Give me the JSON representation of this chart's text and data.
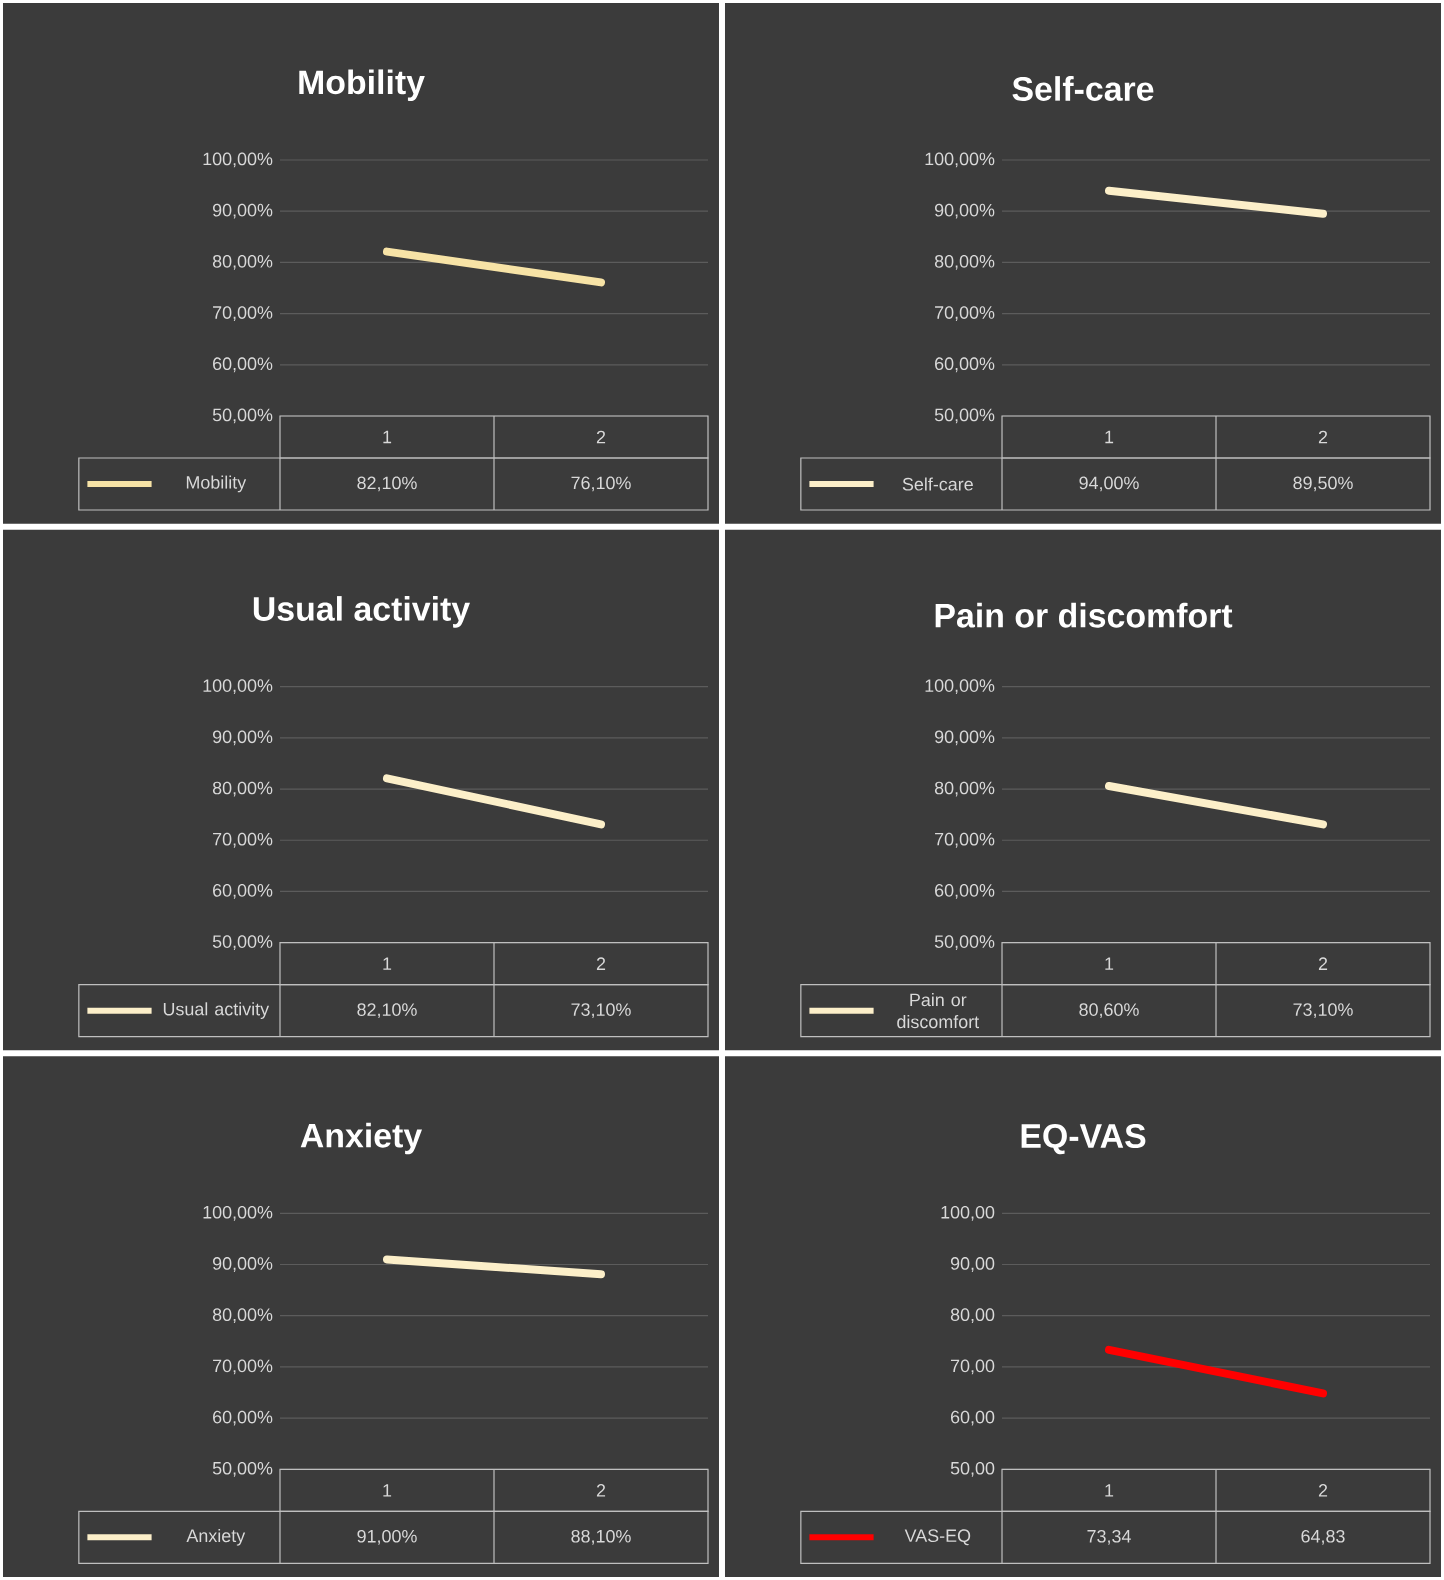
{
  "chart_data": [
    {
      "type": "line",
      "title": "Mobility",
      "categories": [
        "1",
        "2"
      ],
      "grid": "y",
      "legend": "bottom",
      "ylim": [
        50,
        100
      ],
      "yticks": [
        {
          "value": 50,
          "label": "50,00%"
        },
        {
          "value": 60,
          "label": "60,00%"
        },
        {
          "value": 70,
          "label": "70,00%"
        },
        {
          "value": 80,
          "label": "80,00%"
        },
        {
          "value": 90,
          "label": "90,00%"
        },
        {
          "value": 100,
          "label": "100,00%"
        }
      ],
      "series": [
        {
          "name": "Mobility",
          "color": "#f7e3a6",
          "values": [
            82.1,
            76.1
          ],
          "value_labels": [
            "82,10%",
            "76,10%"
          ]
        }
      ]
    },
    {
      "type": "line",
      "title": "Self-care",
      "categories": [
        "1",
        "2"
      ],
      "grid": "y",
      "legend": "bottom",
      "ylim": [
        50,
        100
      ],
      "yticks": [
        {
          "value": 50,
          "label": "50,00%"
        },
        {
          "value": 60,
          "label": "60,00%"
        },
        {
          "value": 70,
          "label": "70,00%"
        },
        {
          "value": 80,
          "label": "80,00%"
        },
        {
          "value": 90,
          "label": "90,00%"
        },
        {
          "value": 100,
          "label": "100,00%"
        }
      ],
      "series": [
        {
          "name": "Self-care",
          "color": "#fcefc9",
          "values": [
            94.0,
            89.5
          ],
          "value_labels": [
            "94,00%",
            "89,50%"
          ]
        }
      ]
    },
    {
      "type": "line",
      "title": "Usual activity",
      "categories": [
        "1",
        "2"
      ],
      "grid": "y",
      "legend": "bottom",
      "ylim": [
        50,
        100
      ],
      "yticks": [
        {
          "value": 50,
          "label": "50,00%"
        },
        {
          "value": 60,
          "label": "60,00%"
        },
        {
          "value": 70,
          "label": "70,00%"
        },
        {
          "value": 80,
          "label": "80,00%"
        },
        {
          "value": 90,
          "label": "90,00%"
        },
        {
          "value": 100,
          "label": "100,00%"
        }
      ],
      "series": [
        {
          "name": "Usual activity",
          "color": "#fcefc9",
          "values": [
            82.1,
            73.1
          ],
          "value_labels": [
            "82,10%",
            "73,10%"
          ]
        }
      ]
    },
    {
      "type": "line",
      "title": "Pain or discomfort",
      "categories": [
        "1",
        "2"
      ],
      "grid": "y",
      "legend": "bottom",
      "ylim": [
        50,
        100
      ],
      "yticks": [
        {
          "value": 50,
          "label": "50,00%"
        },
        {
          "value": 60,
          "label": "60,00%"
        },
        {
          "value": 70,
          "label": "70,00%"
        },
        {
          "value": 80,
          "label": "80,00%"
        },
        {
          "value": 90,
          "label": "90,00%"
        },
        {
          "value": 100,
          "label": "100,00%"
        }
      ],
      "series": [
        {
          "name": "Pain or discomfort",
          "color": "#fcefc9",
          "values": [
            80.6,
            73.1
          ],
          "value_labels": [
            "80,60%",
            "73,10%"
          ]
        }
      ]
    },
    {
      "type": "line",
      "title": "Anxiety",
      "categories": [
        "1",
        "2"
      ],
      "grid": "y",
      "legend": "bottom",
      "ylim": [
        50,
        100
      ],
      "yticks": [
        {
          "value": 50,
          "label": "50,00%"
        },
        {
          "value": 60,
          "label": "60,00%"
        },
        {
          "value": 70,
          "label": "70,00%"
        },
        {
          "value": 80,
          "label": "80,00%"
        },
        {
          "value": 90,
          "label": "90,00%"
        },
        {
          "value": 100,
          "label": "100,00%"
        }
      ],
      "series": [
        {
          "name": "Anxiety",
          "color": "#fcefc9",
          "values": [
            91.0,
            88.1
          ],
          "value_labels": [
            "91,00%",
            "88,10%"
          ]
        }
      ]
    },
    {
      "type": "line",
      "title": "EQ-VAS",
      "categories": [
        "1",
        "2"
      ],
      "grid": "y",
      "legend": "bottom",
      "ylim": [
        50,
        100
      ],
      "yticks": [
        {
          "value": 50,
          "label": "50,00"
        },
        {
          "value": 60,
          "label": "60,00"
        },
        {
          "value": 70,
          "label": "70,00"
        },
        {
          "value": 80,
          "label": "80,00"
        },
        {
          "value": 90,
          "label": "90,00"
        },
        {
          "value": 100,
          "label": "100,00"
        }
      ],
      "series": [
        {
          "name": "VAS-EQ",
          "color": "#ff0000",
          "values": [
            73.34,
            64.83
          ],
          "value_labels": [
            "73,34",
            "64,83"
          ]
        }
      ]
    }
  ]
}
